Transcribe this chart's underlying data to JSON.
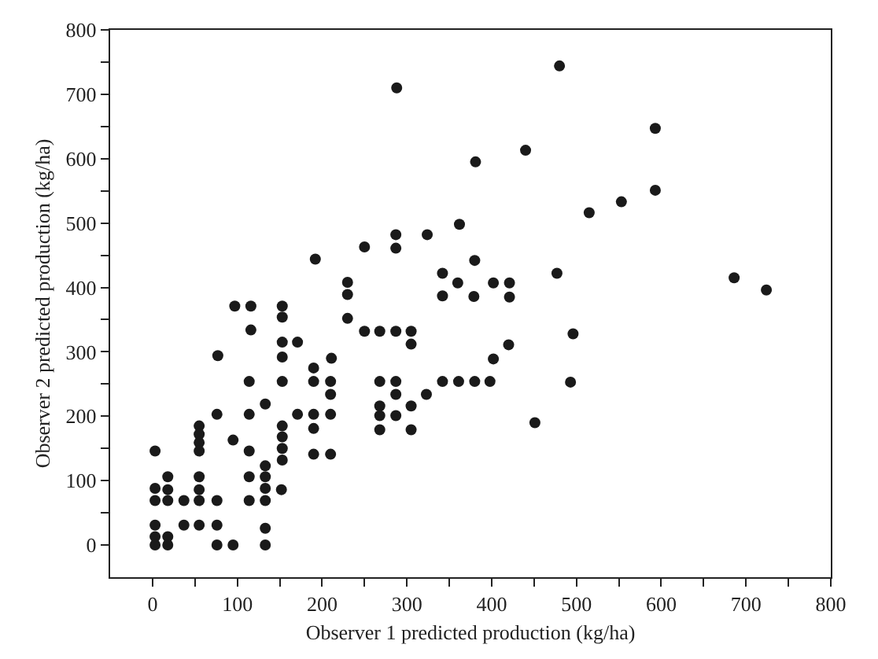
{
  "chart_data": {
    "type": "scatter",
    "xlabel": "Observer 1 predicted production (kg/ha)",
    "ylabel": "Observer 2 predicted production (kg/ha)",
    "xlim": [
      -50,
      800
    ],
    "ylim": [
      -50,
      800
    ],
    "xticks": [
      0,
      {
        "value": 50,
        "label": null
      },
      100,
      {
        "value": 150,
        "label": null
      },
      200,
      {
        "value": 250,
        "label": null
      },
      300,
      {
        "value": 350,
        "label": null
      },
      400,
      {
        "value": 450,
        "label": null
      },
      500,
      {
        "value": 550,
        "label": null
      },
      600,
      {
        "value": 650,
        "label": null
      },
      700,
      {
        "value": 750,
        "label": null
      },
      800
    ],
    "yticks": [
      0,
      {
        "value": 50,
        "label": null
      },
      100,
      {
        "value": 150,
        "label": null
      },
      200,
      {
        "value": 250,
        "label": null
      },
      300,
      {
        "value": 350,
        "label": null
      },
      400,
      {
        "value": 450,
        "label": null
      },
      500,
      {
        "value": 550,
        "label": null
      },
      600,
      {
        "value": 650,
        "label": null
      },
      700,
      {
        "value": 750,
        "label": null
      },
      800
    ],
    "grid": false,
    "marker": "circle",
    "series": [
      {
        "color": "#1a1a1a",
        "x": [
          480,
          593,
          440,
          381,
          593,
          553,
          515,
          362,
          380,
          342,
          477,
          686,
          724,
          360,
          402,
          421,
          342,
          379,
          421,
          496,
          420,
          402,
          288,
          287,
          287,
          324,
          250,
          192,
          230,
          230,
          97,
          116,
          153,
          153,
          116,
          230,
          250,
          268,
          287,
          305,
          305,
          153,
          171,
          77,
          153,
          211,
          190,
          190,
          210,
          210,
          114,
          153,
          268,
          287,
          287,
          268,
          268,
          287,
          268,
          305,
          305,
          323,
          342,
          361,
          380,
          398,
          493,
          451,
          114,
          133,
          76,
          153,
          153,
          153,
          153,
          171,
          190,
          210,
          190,
          190,
          210,
          95,
          114,
          114,
          133,
          133,
          133,
          133,
          152,
          114,
          133,
          133,
          55,
          55,
          55,
          55,
          55,
          55,
          55,
          76,
          37,
          3,
          3,
          3,
          18,
          18,
          18,
          3,
          3,
          3,
          18,
          18,
          37,
          55,
          76,
          76,
          95
        ],
        "values": [
          744,
          647,
          613,
          595,
          551,
          533,
          516,
          498,
          442,
          422,
          422,
          415,
          396,
          407,
          407,
          407,
          387,
          386,
          385,
          328,
          311,
          289,
          710,
          482,
          461,
          482,
          463,
          444,
          408,
          389,
          371,
          371,
          371,
          354,
          334,
          352,
          332,
          332,
          332,
          332,
          312,
          315,
          315,
          294,
          292,
          290,
          275,
          254,
          254,
          234,
          254,
          254,
          254,
          254,
          234,
          216,
          201,
          201,
          179,
          216,
          179,
          234,
          254,
          254,
          254,
          254,
          253,
          190,
          203,
          219,
          203,
          185,
          168,
          150,
          132,
          203,
          203,
          203,
          181,
          141,
          141,
          163,
          146,
          106,
          123,
          106,
          88,
          69,
          86,
          69,
          26,
          0,
          185,
          172,
          159,
          146,
          106,
          86,
          69,
          69,
          69,
          146,
          88,
          69,
          106,
          86,
          69,
          31,
          13,
          0,
          13,
          0,
          31,
          31,
          31,
          0,
          0
        ]
      }
    ]
  }
}
